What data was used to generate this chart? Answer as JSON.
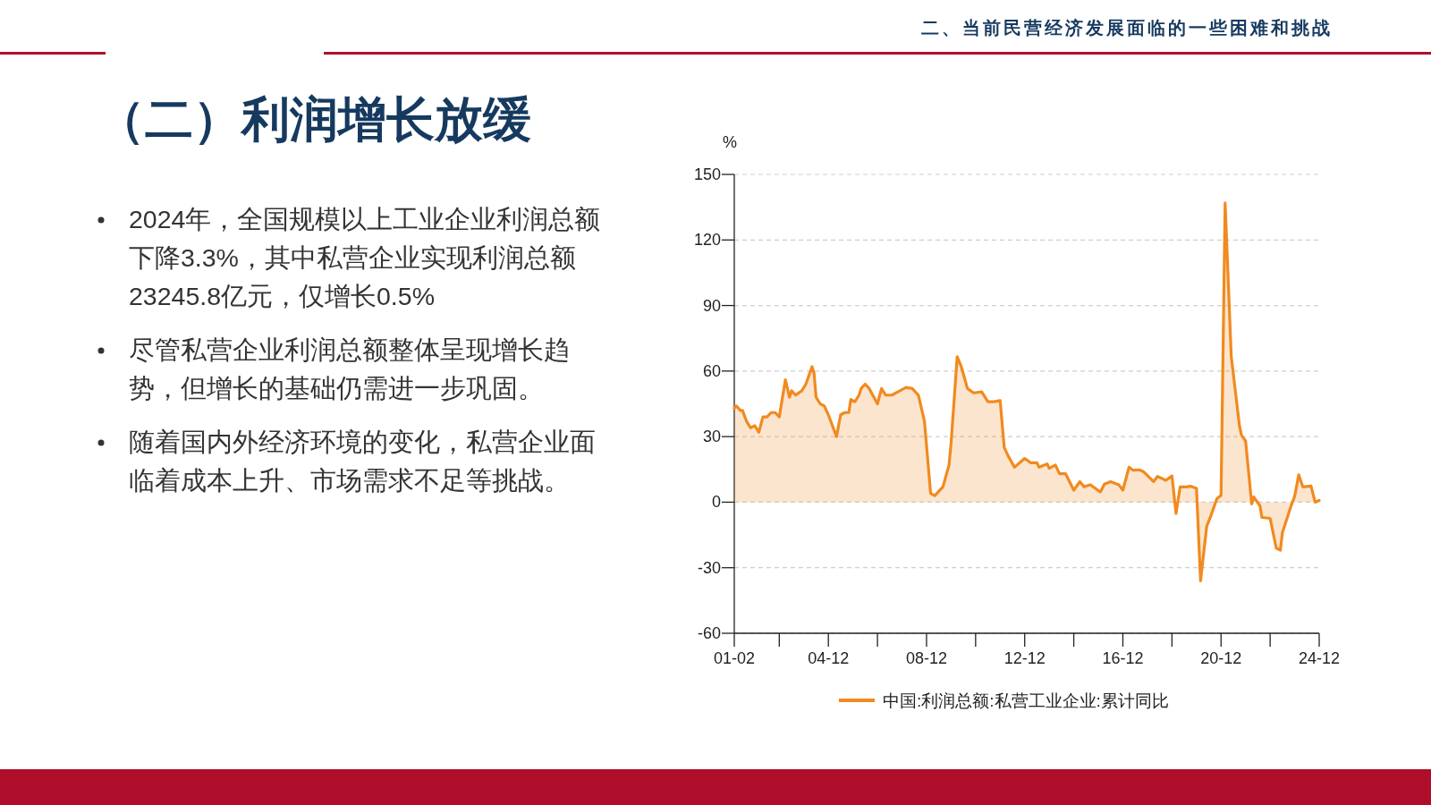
{
  "chart_data": {
    "type": "area",
    "title": "（二）利润增长放缓",
    "subtitle": "二、当前民营经济发展面临的一些困难和挑战",
    "annotations": [
      "2024年，全国规模以上工业企业利润总额下降3.3%，其中私营企业实现利润总额23245.8亿元，仅增长0.5%",
      "尽管私营企业利润总额整体呈现增长趋势，但增长的基础仍需进一步巩固。",
      "随着国内外经济环境的变化，私营企业面临着成本上升、市场需求不足等挑战。"
    ],
    "ylabel": "%",
    "x": [
      "2001-02",
      "2001-03",
      "2001-05",
      "2001-06",
      "2001-08",
      "2001-10",
      "2001-12",
      "2002-02",
      "2002-04",
      "2002-06",
      "2002-08",
      "2002-10",
      "2002-12",
      "2003-03",
      "2003-05",
      "2003-06",
      "2003-08",
      "2003-11",
      "2004-01",
      "2004-04",
      "2004-05",
      "2004-06",
      "2004-08",
      "2004-10",
      "2004-12",
      "2005-04",
      "2005-06",
      "2005-08",
      "2005-10",
      "2005-11",
      "2006-01",
      "2006-03",
      "2006-04",
      "2006-06",
      "2006-08",
      "2006-12",
      "2007-02",
      "2007-04",
      "2007-07",
      "2007-11",
      "2008-02",
      "2008-05",
      "2008-08",
      "2008-11",
      "2009-02",
      "2009-04",
      "2009-08",
      "2009-11",
      "2009-12",
      "2010-03",
      "2010-05",
      "2010-08",
      "2010-11",
      "2011-03",
      "2011-06",
      "2011-09",
      "2011-12",
      "2012-02",
      "2012-04",
      "2012-07",
      "2012-12",
      "2013-03",
      "2013-06",
      "2013-07",
      "2013-11",
      "2013-12",
      "2014-03",
      "2014-05",
      "2014-08",
      "2014-12",
      "2015-03",
      "2015-05",
      "2015-08",
      "2016-01",
      "2016-03",
      "2016-06",
      "2016-10",
      "2016-12",
      "2017-03",
      "2017-05",
      "2017-08",
      "2017-10",
      "2018-03",
      "2018-05",
      "2018-09",
      "2018-12",
      "2019-02",
      "2019-04",
      "2019-07",
      "2019-09",
      "2019-12",
      "2020-02",
      "2020-05",
      "2020-07",
      "2020-10",
      "2020-12",
      "2021-02",
      "2021-05",
      "2021-09",
      "2021-10",
      "2021-12",
      "2022-03",
      "2022-04",
      "2022-07",
      "2022-08",
      "2022-12",
      "2023-03",
      "2023-05",
      "2023-06",
      "2023-10",
      "2023-12",
      "2024-02",
      "2024-04",
      "2024-08",
      "2024-10",
      "2024-12"
    ],
    "series": [
      {
        "name": "中国:利润总额:私营工业企业:累计同比",
        "color": "#f18a1f",
        "values": [
          43,
          44,
          42,
          42,
          37,
          34,
          35,
          32,
          39,
          39,
          41,
          41,
          39,
          56,
          48,
          51,
          49,
          51,
          54,
          62,
          59,
          48,
          45,
          44,
          40,
          30,
          40,
          41,
          41,
          47,
          46,
          49,
          52,
          54,
          52,
          45,
          52,
          49,
          49,
          51,
          52.5,
          52,
          49,
          37,
          4,
          3,
          7,
          17,
          27,
          66.6,
          62,
          52,
          50,
          50.5,
          46,
          46,
          46.5,
          25,
          21,
          16,
          20,
          18,
          18,
          16,
          17.5,
          15.5,
          17,
          13,
          13,
          5.5,
          9.4,
          7,
          8,
          4.7,
          8.3,
          9.4,
          8,
          5.5,
          16,
          14.6,
          14.8,
          14,
          9.4,
          11.8,
          10,
          12,
          -5.2,
          7,
          7,
          7.3,
          6.3,
          -36,
          -11,
          -6.3,
          1.6,
          3.1,
          137,
          66.6,
          35,
          30.6,
          28,
          -0.8,
          2.4,
          -1.6,
          -7,
          -7.4,
          -21,
          -22,
          -14,
          -2.4,
          2.7,
          12.5,
          7,
          7.4,
          0,
          0.8
        ]
      }
    ],
    "xlim": [
      "2001-02",
      "2024-12"
    ],
    "xticks": [
      {
        "value": "2001-02",
        "label": "01-02"
      },
      {
        "value": "2002-12",
        "label": null
      },
      {
        "value": "2004-12",
        "label": "04-12"
      },
      {
        "value": "2006-12",
        "label": null
      },
      {
        "value": "2008-12",
        "label": "08-12"
      },
      {
        "value": "2010-12",
        "label": null
      },
      {
        "value": "2012-12",
        "label": "12-12"
      },
      {
        "value": "2014-12",
        "label": null
      },
      {
        "value": "2016-12",
        "label": "16-12"
      },
      {
        "value": "2018-12",
        "label": null
      },
      {
        "value": "2020-12",
        "label": "20-12"
      },
      {
        "value": "2022-12",
        "label": null
      },
      {
        "value": "2024-12",
        "label": "24-12"
      }
    ],
    "ylim": [
      -60,
      150
    ],
    "yticks": [
      -60,
      -30,
      0,
      30,
      60,
      90,
      120,
      150
    ],
    "grid": "y",
    "legend": "bottom",
    "line_style": "solid",
    "marker": "none"
  }
}
